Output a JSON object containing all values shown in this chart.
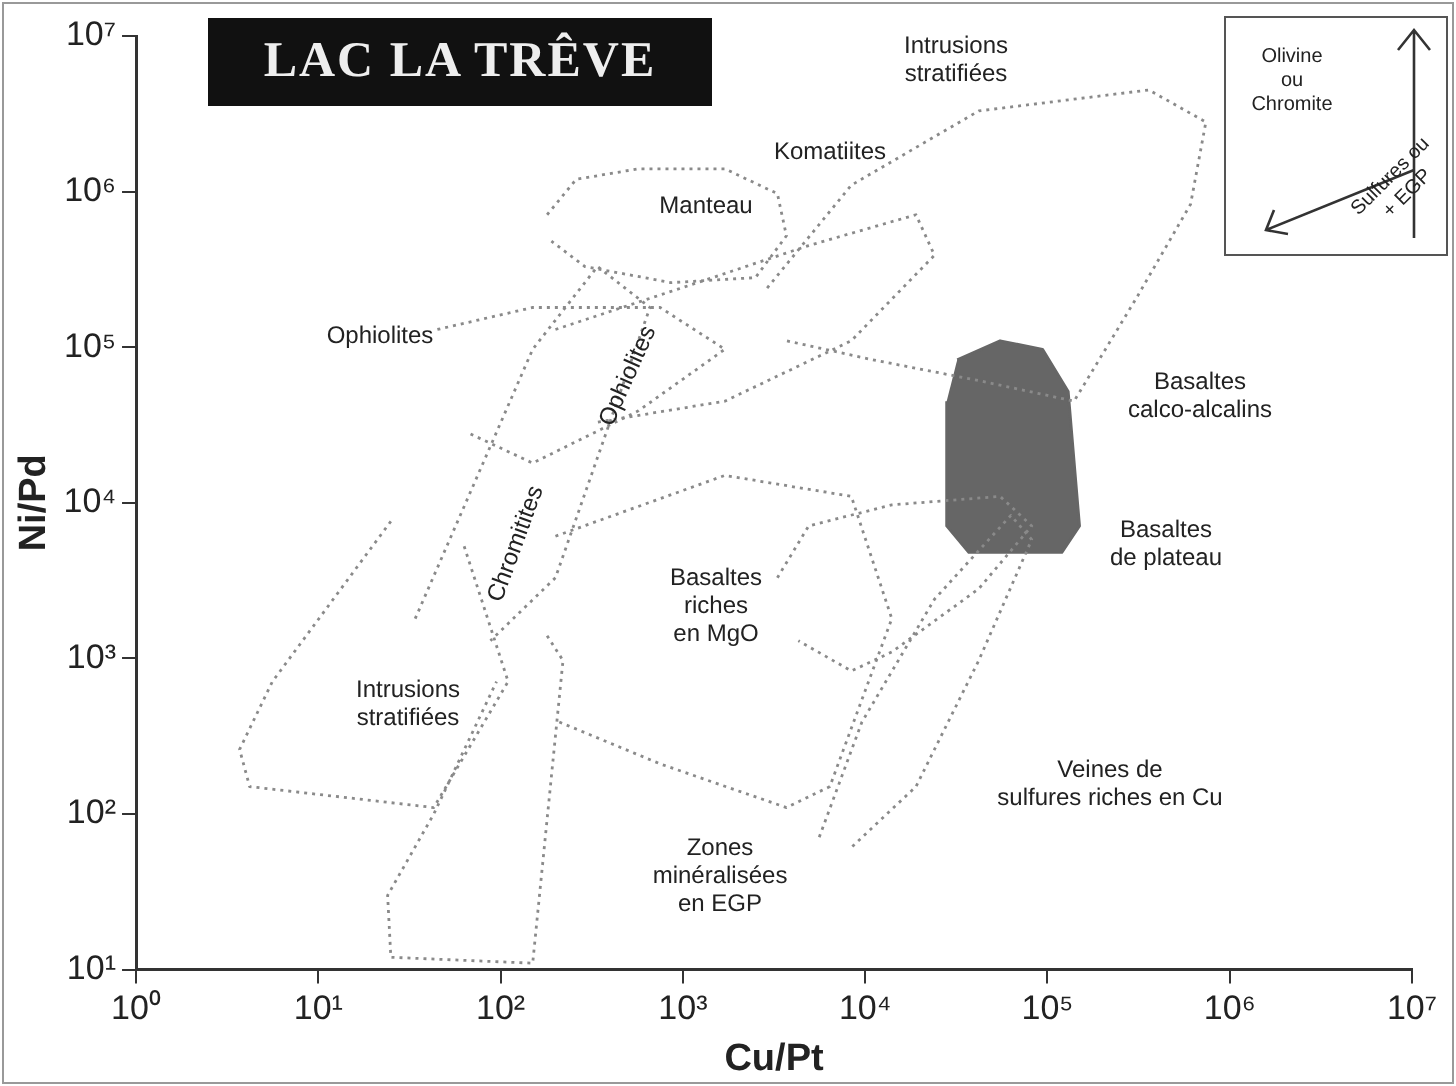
{
  "chart_data": {
    "type": "line",
    "title": "LAC LA TRÊVE",
    "xlabel": "Cu/Pt",
    "ylabel": "Ni/Pd",
    "log": "xy",
    "grid": false,
    "legend": false,
    "marker": "none",
    "line_style": "dotted",
    "xlim": [
      1,
      10000000
    ],
    "ylim": [
      10,
      10000000
    ],
    "xticks": [
      {
        "value": 1,
        "label": "10⁰"
      },
      {
        "value": 10,
        "label": "10¹"
      },
      {
        "value": 100,
        "label": "10²"
      },
      {
        "value": 1000,
        "label": "10³"
      },
      {
        "value": 10000,
        "label": "10⁴"
      },
      {
        "value": 100000,
        "label": "10⁵"
      },
      {
        "value": 1000000,
        "label": "10⁶"
      },
      {
        "value": 10000000,
        "label": "10⁷"
      }
    ],
    "yticks": [
      {
        "value": 10,
        "label": "10¹"
      },
      {
        "value": 100,
        "label": "10²"
      },
      {
        "value": 1000,
        "label": "10³"
      },
      {
        "value": 10000,
        "label": "10⁴"
      },
      {
        "value": 100000,
        "label": "10⁵"
      },
      {
        "value": 1000000,
        "label": "10⁶"
      },
      {
        "value": 10000000,
        "label": "10⁷"
      }
    ],
    "series": [
      {
        "color": "#8a8a8a",
        "x": [
          180,
          260,
          570,
          1700,
          3300,
          3700,
          2500,
          860,
          290,
          190
        ],
        "values": [
          710000,
          1200000,
          1400000,
          1400000,
          970000,
          520000,
          280000,
          260000,
          330000,
          480000
        ]
      },
      {
        "color": "#8a8a8a",
        "x": [
          2900,
          8400,
          42000,
          360000,
          740000,
          610000,
          310000,
          140000,
          42000,
          11000,
          3700
        ],
        "values": [
          240000,
          1100000,
          3300000,
          4500000,
          2800000,
          830000,
          210000,
          45000,
          61000,
          83000,
          110000
        ]
      },
      {
        "color": "#8a8a8a",
        "x": [
          200,
          980,
          4900,
          19000,
          24000,
          8400,
          1700,
          340
        ],
        "values": [
          130000,
          240000,
          450000,
          710000,
          390000,
          110000,
          45000,
          33000
        ]
      },
      {
        "color": "#8a8a8a",
        "x": [
          45,
          150,
          750,
          1700,
          570,
          150,
          67
        ],
        "values": [
          130000,
          180000,
          180000,
          97000,
          39000,
          18000,
          28000
        ]
      },
      {
        "color": "#8a8a8a",
        "x": [
          34,
          150,
          340,
          660,
          200,
          88
        ],
        "values": [
          1800,
          97000,
          330000,
          180000,
          3300,
          1300
        ]
      },
      {
        "color": "#8a8a8a",
        "x": [
          200,
          1700,
          8400,
          14000,
          6400,
          3700,
          750,
          210
        ],
        "values": [
          6100,
          15000,
          11000,
          1800,
          150,
          110,
          210,
          390
        ]
      },
      {
        "color": "#8a8a8a",
        "x": [
          3300,
          4900,
          14000,
          55000,
          82000,
          42000,
          14000,
          8400,
          4300
        ],
        "values": [
          3300,
          7100,
          9700,
          11000,
          7100,
          2800,
          1100,
          830,
          1300
        ]
      },
      {
        "color": "#8a8a8a",
        "x": [
          5600,
          9600,
          24000,
          63000,
          82000,
          42000,
          19000,
          8400
        ],
        "values": [
          71,
          390,
          2400,
          8300,
          5800,
          970,
          150,
          61
        ]
      },
      {
        "color": "#8a8a8a",
        "x": [
          25,
          5.6,
          3.7,
          4.2,
          43,
          110,
          62
        ],
        "values": [
          7600,
          710,
          260,
          150,
          110,
          710,
          5600
        ]
      },
      {
        "color": "#8a8a8a",
        "x": [
          180,
          220,
          150,
          25,
          24,
          43,
          95
        ],
        "values": [
          1400,
          970,
          11,
          12,
          30,
          100,
          710
        ]
      },
      {
        "type": "area",
        "color": "#666666",
        "x": [
          32000,
          55000,
          94000,
          130000,
          150000,
          120000,
          37000,
          28000,
          28000
        ],
        "values": [
          83000,
          110000,
          97000,
          52000,
          7100,
          4800,
          4800,
          7100,
          45000
        ]
      }
    ],
    "annotations": [
      "Intrusions\nstratifiées",
      "Komatiites",
      "Manteau",
      "Ophiolites",
      "Ophiolites",
      "Chromitites",
      "Basaltes\ncalco-alcalins",
      "Basaltes\nde plateau",
      "Basaltes\nriches\nen MgO",
      "Intrusions\nstratifiées",
      "Veines de\nsulfures riches en Cu",
      "Zones\nminéralisées\nen EGP",
      "Olivine\nou\nChromite",
      "Sulfures ou\n+ EGP"
    ]
  }
}
